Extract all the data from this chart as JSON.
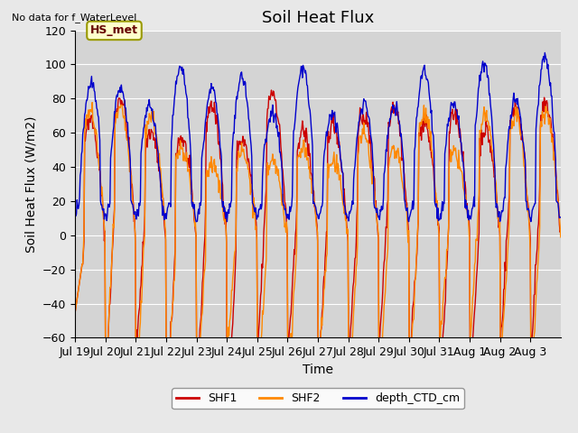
{
  "title": "Soil Heat Flux",
  "top_left_text": "No data for f_WaterLevel",
  "ylabel": "Soil Heat Flux (W/m2)",
  "xlabel": "Time",
  "legend_label": "HS_met",
  "series_labels": [
    "SHF1",
    "SHF2",
    "depth_CTD_cm"
  ],
  "series_colors": [
    "#cc0000",
    "#ff8800",
    "#0000cc"
  ],
  "ylim": [
    -60,
    120
  ],
  "background_color": "#e8e8e8",
  "plot_bg_color": "#d4d4d4",
  "title_fontsize": 13,
  "label_fontsize": 10,
  "tick_fontsize": 9,
  "n_days": 16,
  "pts_per_day": 48,
  "xtick_labels": [
    "Jul 19",
    "Jul 20",
    "Jul 21",
    "Jul 22",
    "Jul 23",
    "Jul 24",
    "Jul 25",
    "Jul 26",
    "Jul 27",
    "Jul 28",
    "Jul 29",
    "Jul 30",
    "Jul 31",
    "Aug 1",
    "Aug 2",
    "Aug 3"
  ],
  "legend_box_color": "#ffffcc",
  "legend_box_edge": "#999900"
}
